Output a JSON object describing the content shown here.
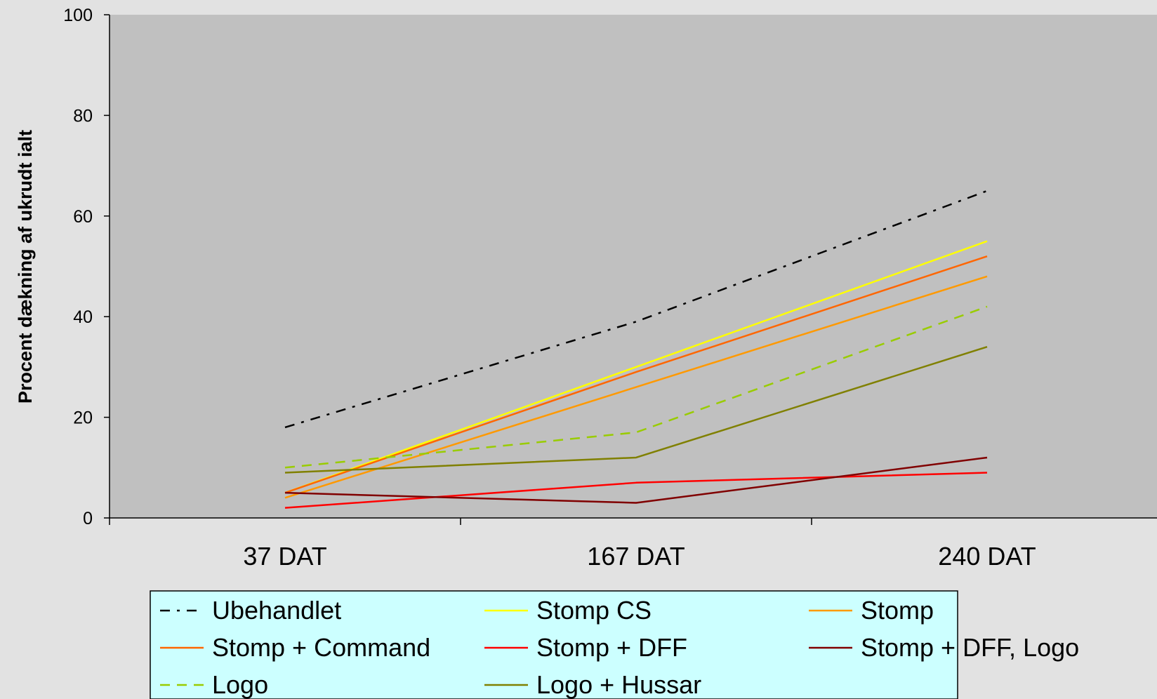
{
  "chart_data": {
    "type": "line",
    "title": "",
    "xlabel": "",
    "ylabel": "Procent dækning af ukrudt ialt",
    "ylim": [
      0,
      100
    ],
    "yticks": [
      0,
      20,
      40,
      60,
      80,
      100
    ],
    "categories": [
      "37 DAT",
      "167 DAT",
      "240 DAT"
    ],
    "grid": false,
    "legend_position": "bottom",
    "plot_background": "#c0c0c0",
    "legend_background": "#ccffff",
    "series": [
      {
        "name": "Ubehandlet",
        "values": [
          18,
          39,
          65
        ],
        "color": "#000000",
        "dash": "dash-dot"
      },
      {
        "name": "Stomp CS",
        "values": [
          5,
          30,
          55
        ],
        "color": "#ffff00",
        "dash": "solid"
      },
      {
        "name": "Stomp",
        "values": [
          4,
          26,
          48
        ],
        "color": "#ff9900",
        "dash": "solid"
      },
      {
        "name": "Stomp + Command",
        "values": [
          5,
          29,
          52
        ],
        "color": "#ff6600",
        "dash": "solid"
      },
      {
        "name": "Stomp + DFF",
        "values": [
          2,
          7,
          9
        ],
        "color": "#ff0000",
        "dash": "solid"
      },
      {
        "name": "Stomp + DFF, Logo",
        "values": [
          5,
          3,
          12
        ],
        "color": "#800000",
        "dash": "solid"
      },
      {
        "name": "Logo",
        "values": [
          10,
          17,
          42
        ],
        "color": "#99cc00",
        "dash": "dash"
      },
      {
        "name": "Logo + Hussar",
        "values": [
          9,
          12,
          34
        ],
        "color": "#808000",
        "dash": "solid"
      }
    ]
  }
}
